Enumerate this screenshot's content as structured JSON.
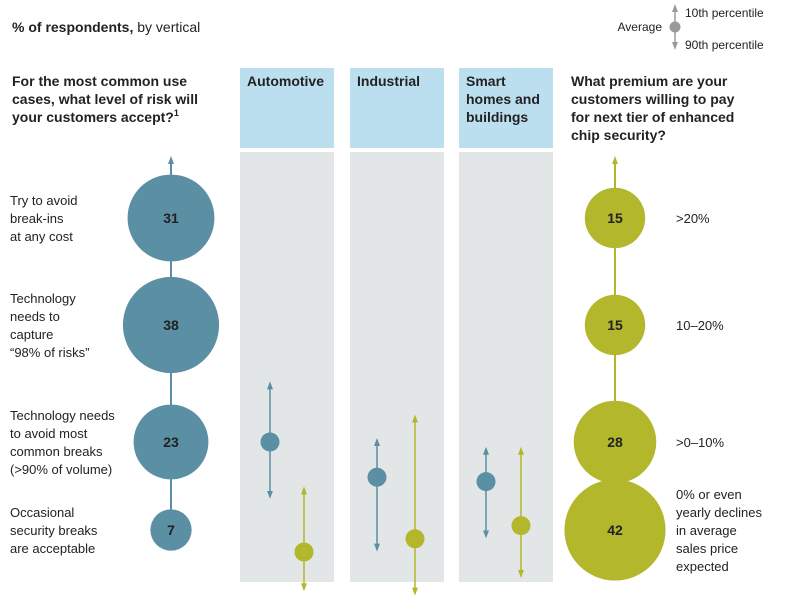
{
  "chart_data": {
    "type": "bubble",
    "subtitle_bold": "% of respondents,",
    "subtitle_rest": " by vertical",
    "legend": {
      "label_average": "Average",
      "label_top": "10th percentile",
      "label_bottom": "90th percentile"
    },
    "left_question": [
      "For the most common use",
      "cases, what level of risk will",
      "your customers accept?"
    ],
    "left_question_footnote": "1",
    "right_question": [
      "What premium are your",
      "customers willing to pay",
      "for next tier of enhanced",
      "chip security?"
    ],
    "risk_levels": [
      {
        "label": [
          "Try to avoid",
          "break-ins",
          "at any cost"
        ],
        "value": 31
      },
      {
        "label": [
          "Technology",
          "needs to",
          "capture",
          "“98% of risks”"
        ],
        "value": 38
      },
      {
        "label": [
          "Technology needs",
          "to avoid most",
          "common breaks",
          "(>90% of volume)"
        ],
        "value": 23
      },
      {
        "label": [
          "Occasional",
          "security breaks",
          "are acceptable"
        ],
        "value": 7
      }
    ],
    "premiums": [
      {
        "label": [
          ">20%"
        ],
        "value": 15
      },
      {
        "label": [
          "10–20%"
        ],
        "value": 15
      },
      {
        "label": [
          ">0–10%"
        ],
        "value": 28
      },
      {
        "label": [
          "0% or even",
          "yearly declines",
          "in average",
          "sales price",
          "expected"
        ],
        "value": 42
      }
    ],
    "verticals": [
      {
        "name": [
          "Automotive"
        ],
        "risk": {
          "p10": 1.55,
          "avg": 2.0,
          "p90": 2.6
        },
        "premium": {
          "p10": 2.55,
          "avg": 3.25,
          "p90": 3.65
        }
      },
      {
        "name": [
          "Industrial"
        ],
        "risk": {
          "p10": 2.0,
          "avg": 2.4,
          "p90": 3.2
        },
        "premium": {
          "p10": 1.8,
          "avg": 3.1,
          "p90": 3.7
        }
      },
      {
        "name": [
          "Smart",
          "homes and",
          "buildings"
        ],
        "risk": {
          "p10": 2.1,
          "avg": 2.45,
          "p90": 3.05
        },
        "premium": {
          "p10": 2.1,
          "avg": 2.95,
          "p90": 3.5
        }
      }
    ],
    "colors": {
      "risk": "#5b8fa3",
      "premium": "#b3b72b",
      "column_header": "#bcdff0",
      "column_body": "#e3e6e6"
    }
  }
}
